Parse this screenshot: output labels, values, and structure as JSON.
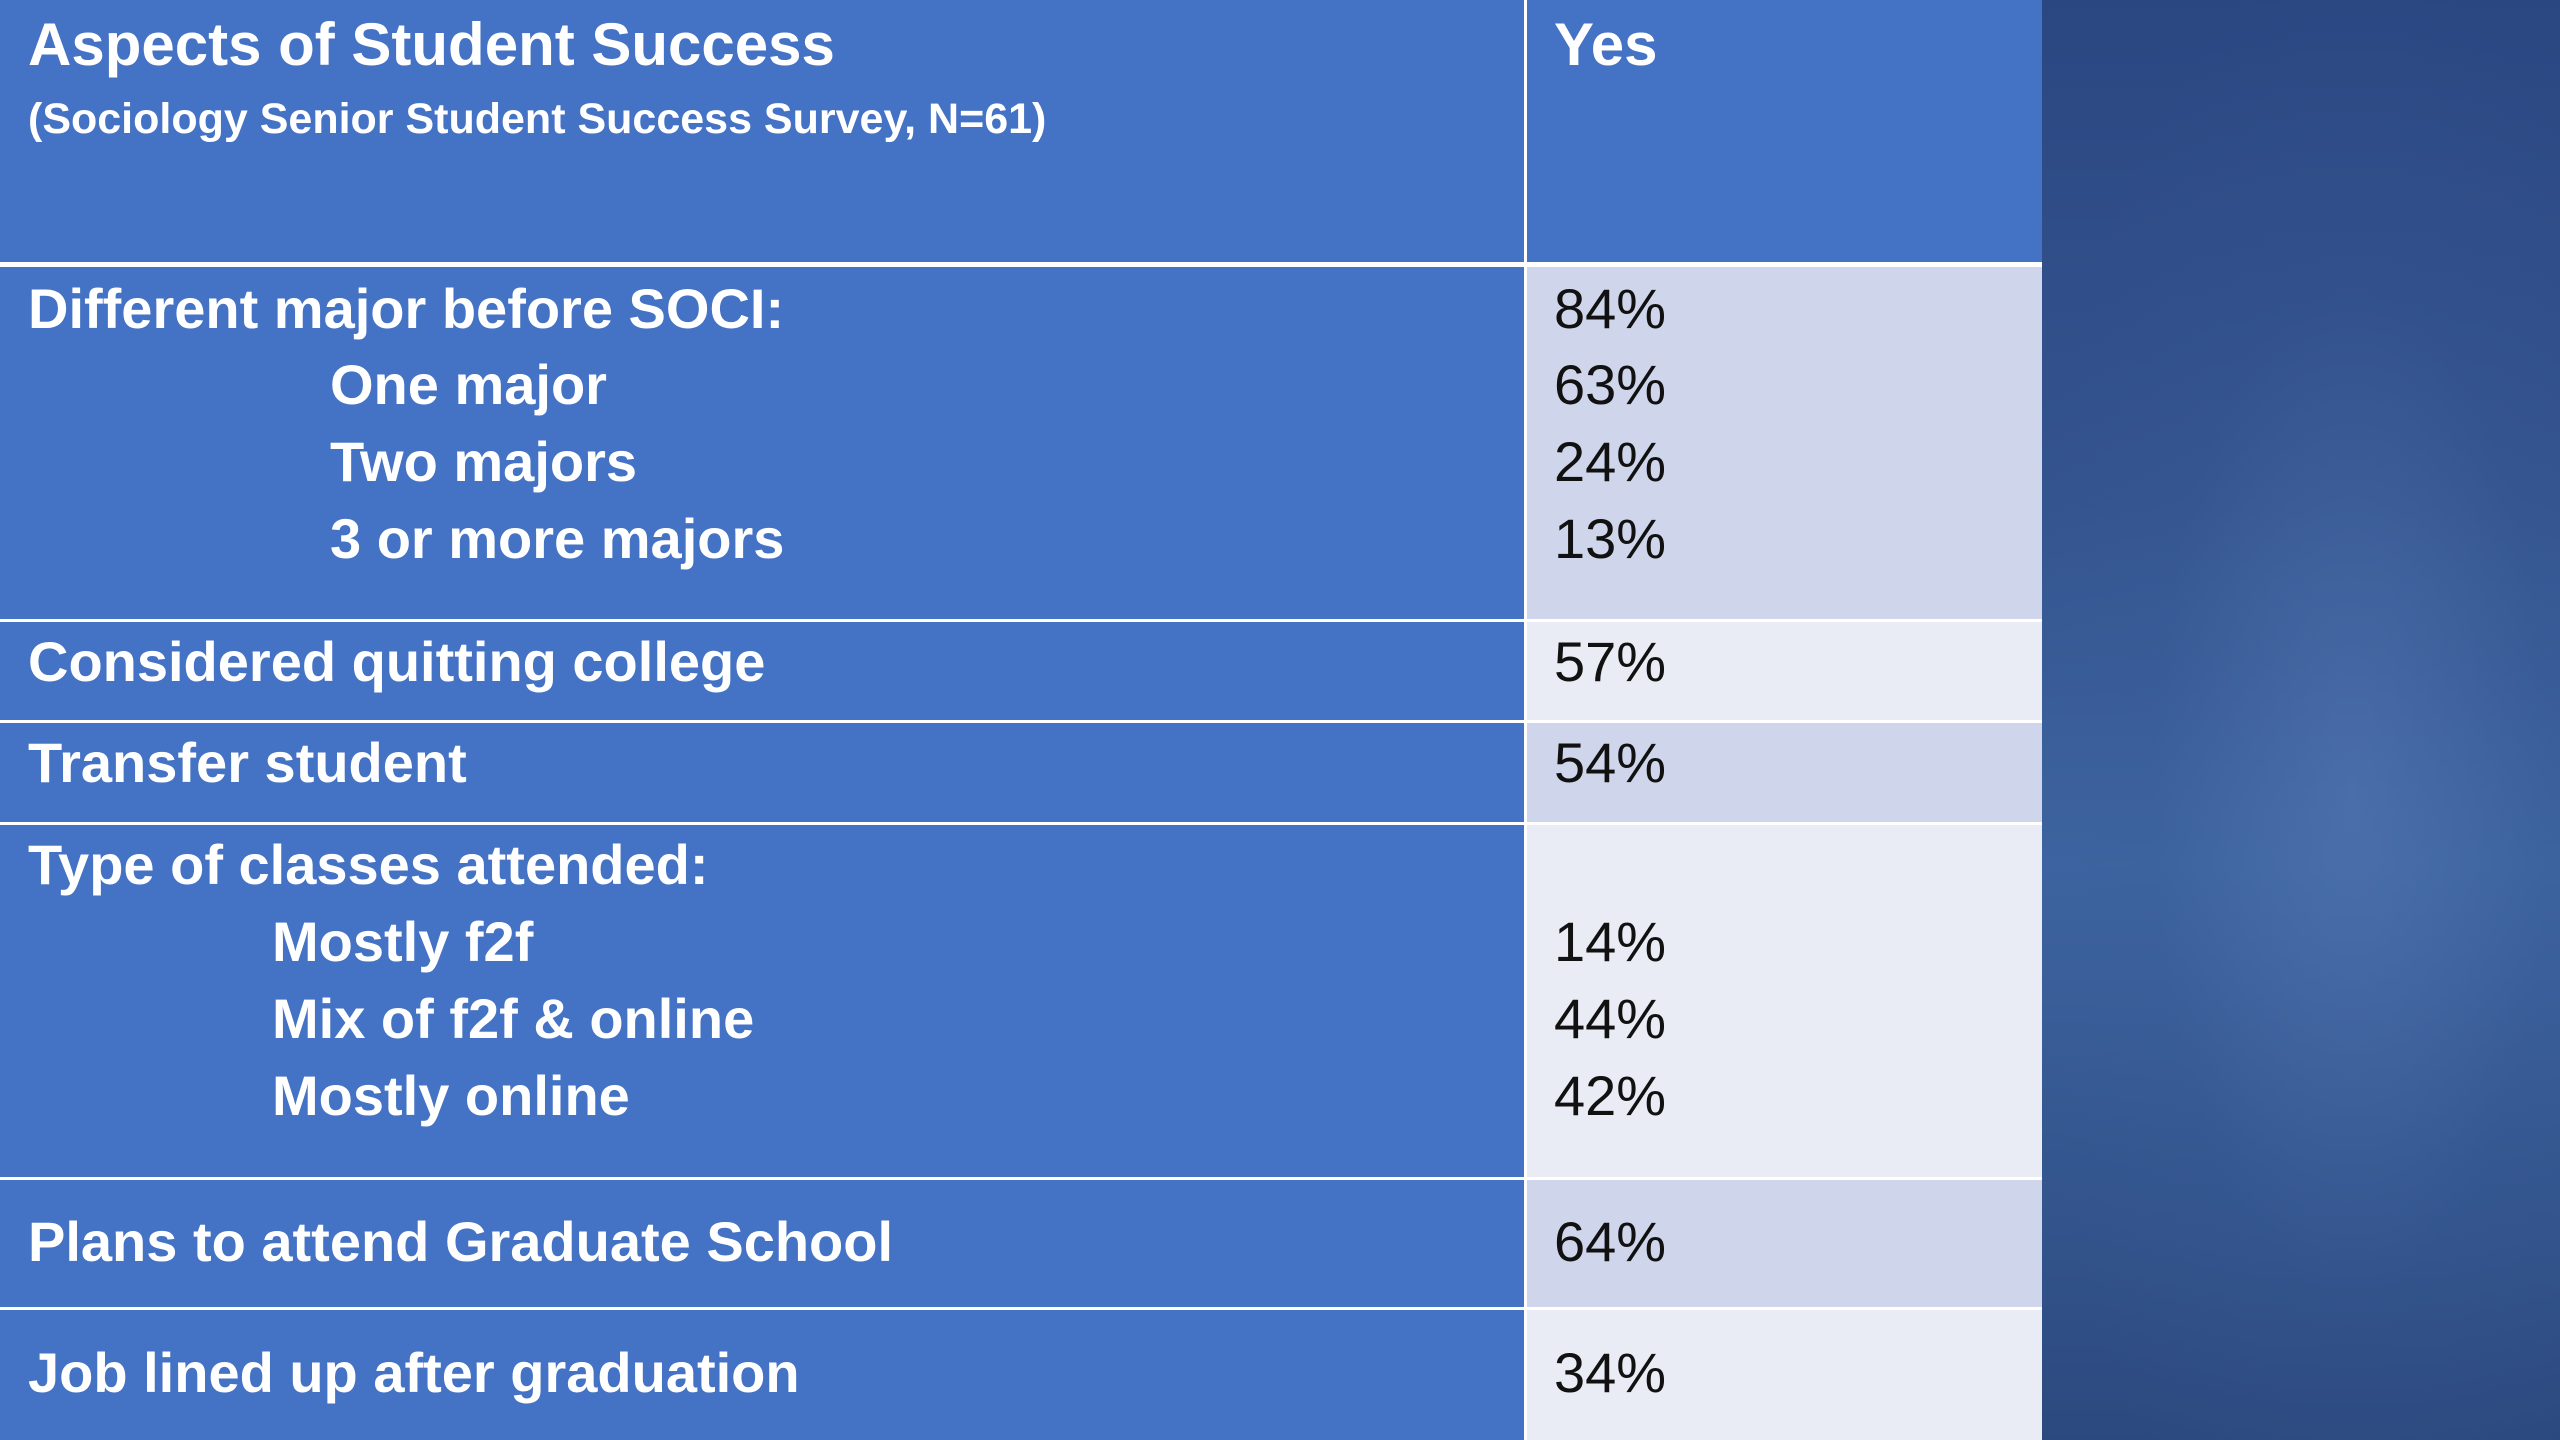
{
  "table": {
    "header": {
      "title": "Aspects of Student Success",
      "subtitle": "(Sociology Senior Student Success Survey, N=61)",
      "column": "Yes"
    },
    "rows": [
      {
        "label": "Different major before SOCI:",
        "value": "84%",
        "subs": [
          {
            "label": "One major",
            "value": "63%"
          },
          {
            "label": "Two majors",
            "value": "24%"
          },
          {
            "label": "3 or more majors",
            "value": "13%"
          }
        ]
      },
      {
        "label": "Considered quitting college",
        "value": "57%"
      },
      {
        "label": "Transfer student",
        "value": "54%"
      },
      {
        "label": "Type of classes attended:",
        "value": "",
        "subs": [
          {
            "label": "Mostly f2f",
            "value": "14%"
          },
          {
            "label": "Mix of f2f & online",
            "value": "44%"
          },
          {
            "label": "Mostly online",
            "value": "42%"
          }
        ]
      },
      {
        "label": "Plans to attend Graduate School",
        "value": "64%"
      },
      {
        "label": "Job lined up after graduation",
        "value": "34%"
      }
    ]
  },
  "colors": {
    "header_blue": "#4472c4",
    "band_dark": "#cfd5ea",
    "band_light": "#e9ebf5",
    "background": "#34558f"
  }
}
